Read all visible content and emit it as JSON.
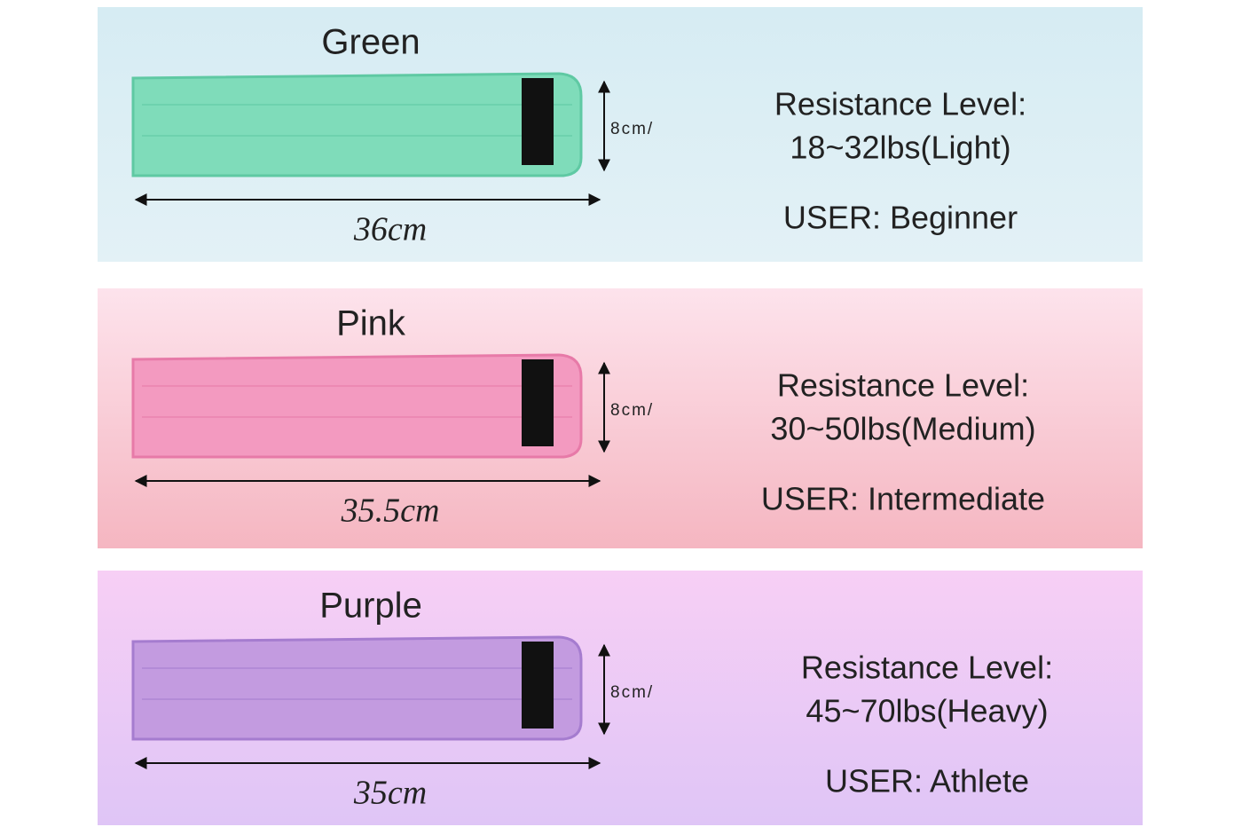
{
  "panels": [
    {
      "name": "Green",
      "height": "8cm/",
      "length": "36cm",
      "resistance_label": "Resistance Level:",
      "resistance": "18~32lbs(Light)",
      "user": "USER: Beginner"
    },
    {
      "name": "Pink",
      "height": "8cm/",
      "length": "35.5cm",
      "resistance_label": "Resistance Level:",
      "resistance": "30~50lbs(Medium)",
      "user": "USER: Intermediate"
    },
    {
      "name": "Purple",
      "height": "8cm/",
      "length": "35cm",
      "resistance_label": "Resistance Level:",
      "resistance": "45~70lbs(Heavy)",
      "user": "USER: Athlete"
    }
  ]
}
